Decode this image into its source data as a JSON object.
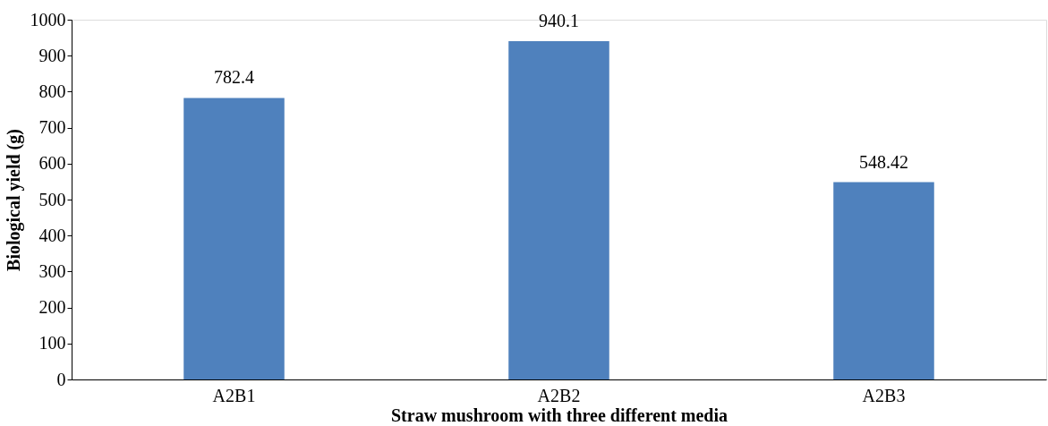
{
  "chart_data": {
    "type": "bar",
    "xlabel": "Straw mushroom with three different media",
    "ylabel": "Biological yield (g)",
    "categories": [
      "A2B1",
      "A2B2",
      "A2B3"
    ],
    "values": [
      782.4,
      940.1,
      548.42
    ],
    "value_labels": [
      "782.4",
      "940.1",
      "548.42"
    ],
    "color": "#4f81bd",
    "ylim": [
      0,
      1000
    ],
    "yticks": [
      0,
      100,
      200,
      300,
      400,
      500,
      600,
      700,
      800,
      900,
      1000
    ],
    "grid": false
  }
}
